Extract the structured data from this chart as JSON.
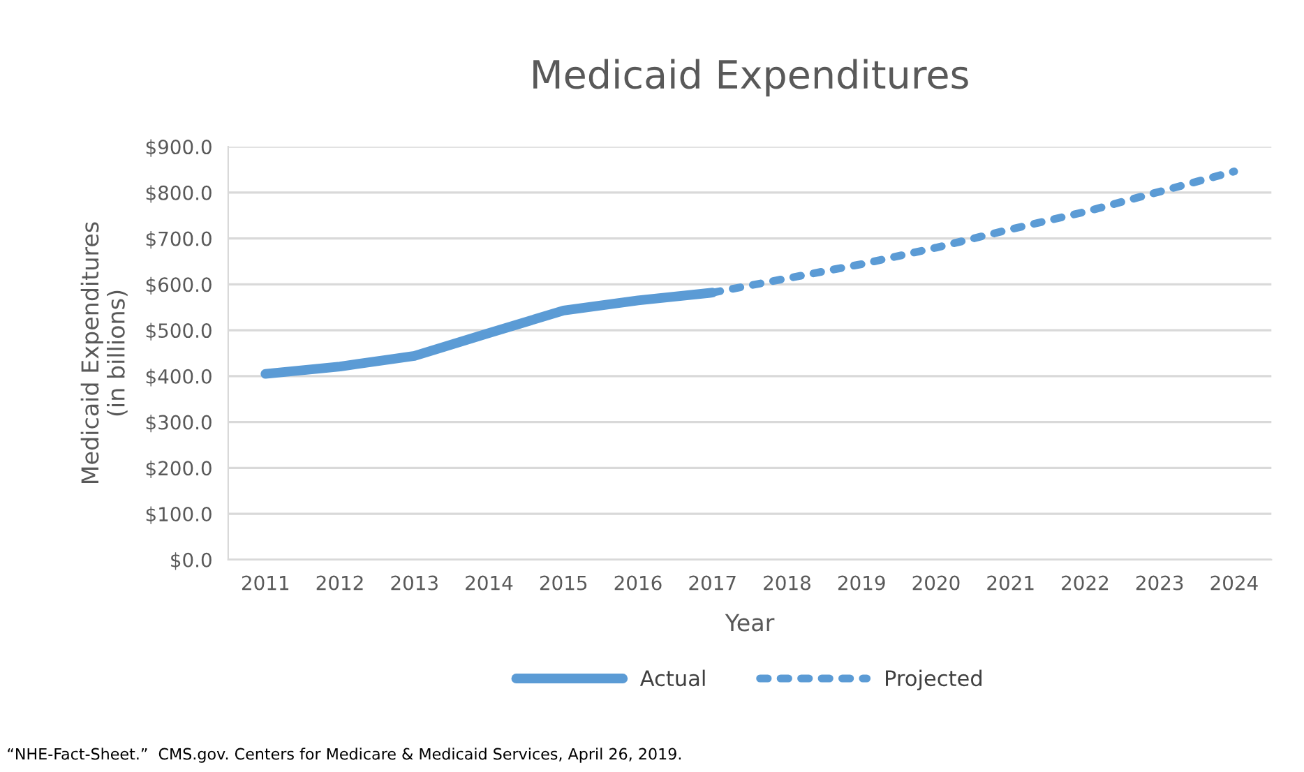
{
  "chart_data": {
    "type": "line",
    "title": "Medicaid Expenditures",
    "xlabel": "Year",
    "ylabel": "Medicaid Expenditures\n(in billions)",
    "categories": [
      "2011",
      "2012",
      "2013",
      "2014",
      "2015",
      "2016",
      "2017",
      "2018",
      "2019",
      "2020",
      "2021",
      "2022",
      "2023",
      "2024"
    ],
    "series": [
      {
        "name": "Actual",
        "color": "#5b9bd5",
        "line_style": "solid",
        "values": [
          405,
          421,
          444,
          494,
          543,
          565,
          582,
          null,
          null,
          null,
          null,
          null,
          null,
          null
        ]
      },
      {
        "name": "Projected",
        "color": "#5b9bd5",
        "line_style": "dotted",
        "values": [
          null,
          null,
          null,
          null,
          null,
          null,
          582,
          613,
          644,
          680,
          720,
          758,
          802,
          846
        ]
      }
    ],
    "ylim": [
      0,
      900
    ],
    "yticks": [
      {
        "value": 0,
        "label": "$0.0"
      },
      {
        "value": 100,
        "label": "$100.0"
      },
      {
        "value": 200,
        "label": "$200.0"
      },
      {
        "value": 300,
        "label": "$300.0"
      },
      {
        "value": 400,
        "label": "$400.0"
      },
      {
        "value": 500,
        "label": "$500.0"
      },
      {
        "value": 600,
        "label": "$600.0"
      },
      {
        "value": 700,
        "label": "$700.0"
      },
      {
        "value": 800,
        "label": "$800.0"
      },
      {
        "value": 900,
        "label": "$900.0"
      }
    ],
    "grid": "y",
    "legend": "bottom",
    "marker": "none",
    "annotations": [
      "“NHE-Fact-Sheet.”  CMS.gov. Centers for Medicare & Medicaid Services, April 26, 2019."
    ]
  }
}
